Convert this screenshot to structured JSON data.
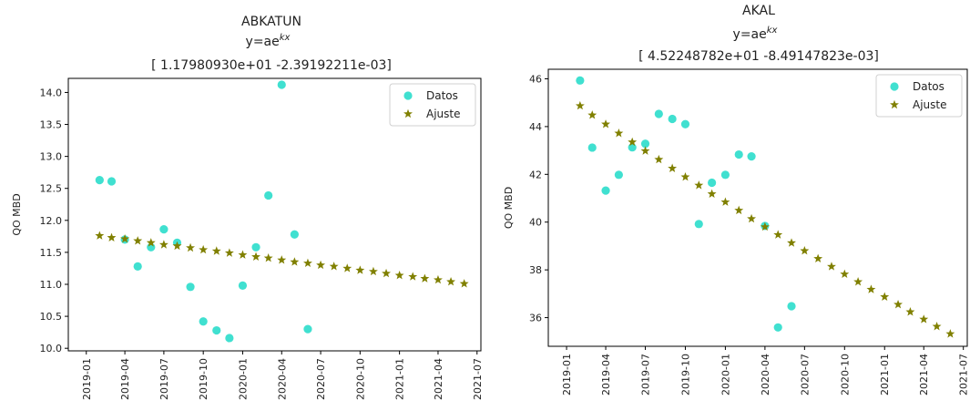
{
  "chart_data": [
    {
      "type": "scatter",
      "title_lines": [
        "ABKATUN",
        "y=ae",
        "[ 1.17980930e+01 -2.39192211e-03]"
      ],
      "title_superscript": "kx",
      "xlabel": "",
      "ylabel": "QO MBD",
      "x_axis_type": "date",
      "xlim": [
        "2018-11-20",
        "2021-07-10"
      ],
      "ylim": [
        9.96,
        14.22
      ],
      "x_ticks": [
        "2019-01",
        "2019-04",
        "2019-07",
        "2019-10",
        "2020-01",
        "2020-04",
        "2020-07",
        "2020-10",
        "2021-01",
        "2021-04",
        "2021-07"
      ],
      "y_ticks": [
        10.0,
        10.5,
        11.0,
        11.5,
        12.0,
        12.5,
        13.0,
        13.5,
        14.0
      ],
      "y_tick_labels": [
        "10.0",
        "10.5",
        "11.0",
        "11.5",
        "12.0",
        "12.5",
        "13.0",
        "13.5",
        "14.0"
      ],
      "grid": false,
      "legend_position": "top-right",
      "series": [
        {
          "name": "Datos",
          "marker": "circle",
          "color": "#40E0D0",
          "points": [
            {
              "x": "2019-02-01",
              "y": 12.63
            },
            {
              "x": "2019-03-01",
              "y": 12.61
            },
            {
              "x": "2019-04-01",
              "y": 11.7
            },
            {
              "x": "2019-05-01",
              "y": 11.28
            },
            {
              "x": "2019-06-01",
              "y": 11.58
            },
            {
              "x": "2019-07-01",
              "y": 11.86
            },
            {
              "x": "2019-08-01",
              "y": 11.65
            },
            {
              "x": "2019-09-01",
              "y": 10.96
            },
            {
              "x": "2019-10-01",
              "y": 10.42
            },
            {
              "x": "2019-11-01",
              "y": 10.28
            },
            {
              "x": "2019-12-01",
              "y": 10.16
            },
            {
              "x": "2020-01-01",
              "y": 10.98
            },
            {
              "x": "2020-02-01",
              "y": 11.58
            },
            {
              "x": "2020-03-01",
              "y": 12.39
            },
            {
              "x": "2020-04-01",
              "y": 14.12
            },
            {
              "x": "2020-05-01",
              "y": 11.78
            },
            {
              "x": "2020-06-01",
              "y": 10.3
            }
          ]
        },
        {
          "name": "Ajuste",
          "marker": "star",
          "color": "#808000",
          "points": [
            {
              "x": "2019-02-01",
              "y": 11.76
            },
            {
              "x": "2019-03-01",
              "y": 11.73
            },
            {
              "x": "2019-04-01",
              "y": 11.71
            },
            {
              "x": "2019-05-01",
              "y": 11.68
            },
            {
              "x": "2019-06-01",
              "y": 11.65
            },
            {
              "x": "2019-07-01",
              "y": 11.62
            },
            {
              "x": "2019-08-01",
              "y": 11.6
            },
            {
              "x": "2019-09-01",
              "y": 11.57
            },
            {
              "x": "2019-10-01",
              "y": 11.54
            },
            {
              "x": "2019-11-01",
              "y": 11.52
            },
            {
              "x": "2019-12-01",
              "y": 11.49
            },
            {
              "x": "2020-01-01",
              "y": 11.46
            },
            {
              "x": "2020-02-01",
              "y": 11.43
            },
            {
              "x": "2020-03-01",
              "y": 11.41
            },
            {
              "x": "2020-04-01",
              "y": 11.38
            },
            {
              "x": "2020-05-01",
              "y": 11.35
            },
            {
              "x": "2020-06-01",
              "y": 11.33
            },
            {
              "x": "2020-07-01",
              "y": 11.3
            },
            {
              "x": "2020-08-01",
              "y": 11.28
            },
            {
              "x": "2020-09-01",
              "y": 11.25
            },
            {
              "x": "2020-10-01",
              "y": 11.22
            },
            {
              "x": "2020-11-01",
              "y": 11.2
            },
            {
              "x": "2020-12-01",
              "y": 11.17
            },
            {
              "x": "2021-01-01",
              "y": 11.14
            },
            {
              "x": "2021-02-01",
              "y": 11.12
            },
            {
              "x": "2021-03-01",
              "y": 11.09
            },
            {
              "x": "2021-04-01",
              "y": 11.07
            },
            {
              "x": "2021-05-01",
              "y": 11.04
            },
            {
              "x": "2021-06-01",
              "y": 11.01
            }
          ]
        }
      ]
    },
    {
      "type": "scatter",
      "title_lines": [
        "AKAL",
        "y=ae",
        "[ 4.52248782e+01 -8.49147823e-03]"
      ],
      "title_superscript": "kx",
      "xlabel": "",
      "ylabel": "QO MBD",
      "x_axis_type": "date",
      "xlim": [
        "2018-11-20",
        "2021-07-10"
      ],
      "ylim": [
        34.8,
        46.4
      ],
      "x_ticks": [
        "2019-01",
        "2019-04",
        "2019-07",
        "2019-10",
        "2020-01",
        "2020-04",
        "2020-07",
        "2020-10",
        "2021-01",
        "2021-04",
        "2021-07"
      ],
      "y_ticks": [
        36,
        38,
        40,
        42,
        44,
        46
      ],
      "y_tick_labels": [
        "36",
        "38",
        "40",
        "42",
        "44",
        "46"
      ],
      "grid": false,
      "legend_position": "top-right",
      "series": [
        {
          "name": "Datos",
          "marker": "circle",
          "color": "#40E0D0",
          "points": [
            {
              "x": "2019-02-01",
              "y": 45.93
            },
            {
              "x": "2019-03-01",
              "y": 43.12
            },
            {
              "x": "2019-04-01",
              "y": 41.32
            },
            {
              "x": "2019-05-01",
              "y": 41.98
            },
            {
              "x": "2019-06-01",
              "y": 43.13
            },
            {
              "x": "2019-07-01",
              "y": 43.28
            },
            {
              "x": "2019-08-01",
              "y": 44.53
            },
            {
              "x": "2019-09-01",
              "y": 44.32
            },
            {
              "x": "2019-10-01",
              "y": 44.1
            },
            {
              "x": "2019-11-01",
              "y": 39.92
            },
            {
              "x": "2019-12-01",
              "y": 41.65
            },
            {
              "x": "2020-01-01",
              "y": 41.98
            },
            {
              "x": "2020-02-01",
              "y": 42.83
            },
            {
              "x": "2020-03-01",
              "y": 42.75
            },
            {
              "x": "2020-04-01",
              "y": 39.84
            },
            {
              "x": "2020-05-01",
              "y": 35.59
            },
            {
              "x": "2020-06-01",
              "y": 36.48
            }
          ]
        },
        {
          "name": "Ajuste",
          "marker": "star",
          "color": "#808000",
          "points": [
            {
              "x": "2019-02-01",
              "y": 44.87
            },
            {
              "x": "2019-03-01",
              "y": 44.48
            },
            {
              "x": "2019-04-01",
              "y": 44.1
            },
            {
              "x": "2019-05-01",
              "y": 43.72
            },
            {
              "x": "2019-06-01",
              "y": 43.35
            },
            {
              "x": "2019-07-01",
              "y": 42.98
            },
            {
              "x": "2019-08-01",
              "y": 42.62
            },
            {
              "x": "2019-09-01",
              "y": 42.25
            },
            {
              "x": "2019-10-01",
              "y": 41.89
            },
            {
              "x": "2019-11-01",
              "y": 41.54
            },
            {
              "x": "2019-12-01",
              "y": 41.18
            },
            {
              "x": "2020-01-01",
              "y": 40.84
            },
            {
              "x": "2020-02-01",
              "y": 40.49
            },
            {
              "x": "2020-03-01",
              "y": 40.14
            },
            {
              "x": "2020-04-01",
              "y": 39.8
            },
            {
              "x": "2020-05-01",
              "y": 39.47
            },
            {
              "x": "2020-06-01",
              "y": 39.13
            },
            {
              "x": "2020-07-01",
              "y": 38.8
            },
            {
              "x": "2020-08-01",
              "y": 38.47
            },
            {
              "x": "2020-09-01",
              "y": 38.14
            },
            {
              "x": "2020-10-01",
              "y": 37.82
            },
            {
              "x": "2020-11-01",
              "y": 37.5
            },
            {
              "x": "2020-12-01",
              "y": 37.18
            },
            {
              "x": "2021-01-01",
              "y": 36.87
            },
            {
              "x": "2021-02-01",
              "y": 36.55
            },
            {
              "x": "2021-03-01",
              "y": 36.24
            },
            {
              "x": "2021-04-01",
              "y": 35.93
            },
            {
              "x": "2021-05-01",
              "y": 35.63
            },
            {
              "x": "2021-06-01",
              "y": 35.32
            }
          ]
        }
      ]
    }
  ]
}
